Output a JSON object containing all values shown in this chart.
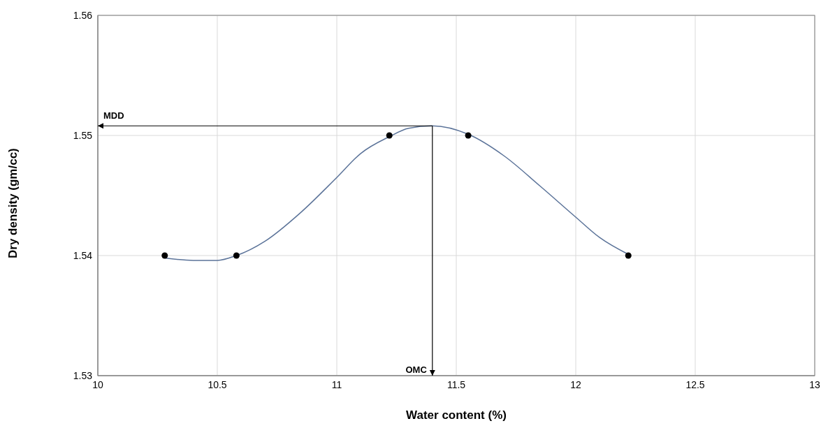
{
  "chart_data": {
    "type": "scatter",
    "xlabel": "Water content (%)",
    "ylabel": "Dry density (gm/cc)",
    "xlim": [
      10,
      13
    ],
    "xticks": [
      10,
      10.5,
      11,
      11.5,
      12,
      12.5,
      13
    ],
    "ylim": [
      1.53,
      1.56
    ],
    "yticks": [
      1.53,
      1.54,
      1.55,
      1.56
    ],
    "grid": true,
    "legend": false,
    "marker": "circle",
    "series": [
      {
        "color": "#000000",
        "x": [
          10.28,
          10.58,
          11.22,
          11.55,
          12.22
        ],
        "values": [
          1.54,
          1.54,
          1.55,
          1.55,
          1.54
        ]
      },
      {
        "type": "line",
        "color": "#5b7399",
        "marker": "none",
        "x": [
          10.28,
          10.4,
          10.5,
          10.58,
          10.7,
          10.85,
          11.0,
          11.1,
          11.22,
          11.3,
          11.4,
          11.55,
          11.7,
          11.85,
          12.0,
          12.1,
          12.22
        ],
        "values": [
          1.5398,
          1.5396,
          1.5396,
          1.54,
          1.5412,
          1.5436,
          1.5465,
          1.5485,
          1.5499,
          1.5506,
          1.5508,
          1.5501,
          1.5483,
          1.5458,
          1.5432,
          1.5415,
          1.5401
        ]
      }
    ],
    "annotations": [
      {
        "text": "MDD",
        "x": 11.4,
        "y": 1.5508
      },
      {
        "text": "OMC",
        "x": 11.4,
        "y": 1.5508
      }
    ]
  }
}
